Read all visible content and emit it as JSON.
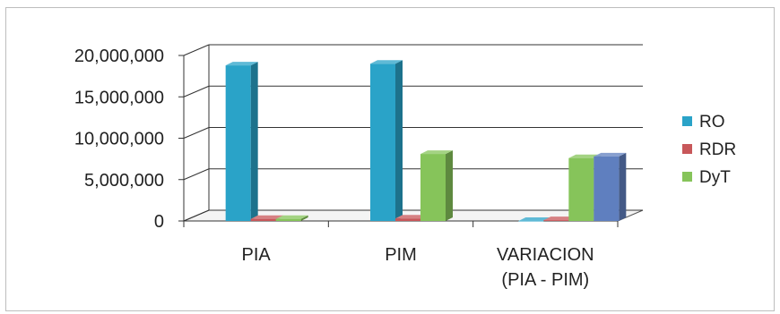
{
  "chart_data": {
    "type": "bar",
    "categories": [
      [
        "PIA"
      ],
      [
        "PIM"
      ],
      [
        "VARIACION",
        "(PIA - PIM)"
      ]
    ],
    "ylim": [
      0,
      20000000
    ],
    "yticks": [
      "0",
      "5,000,000",
      "10,000,000",
      "15,000,000",
      "20,000,000"
    ],
    "ytick_values": [
      0,
      5000000,
      10000000,
      15000000,
      20000000
    ],
    "grid": true,
    "legend_position": "right",
    "series": [
      {
        "name": "RO",
        "values": [
          18800000,
          19000000,
          0
        ],
        "color": "#2aa3c8"
      },
      {
        "name": "RDR",
        "values": [
          250000,
          300000,
          100000
        ],
        "color": "#c8575a"
      },
      {
        "name": "DyT",
        "values": [
          250000,
          8100000,
          7600000
        ],
        "color": "#86c45a"
      },
      {
        "name": "",
        "values": [
          null,
          null,
          7800000
        ],
        "color": "#5f7fbf"
      }
    ],
    "legend": [
      "RO",
      "RDR",
      "DyT"
    ]
  }
}
